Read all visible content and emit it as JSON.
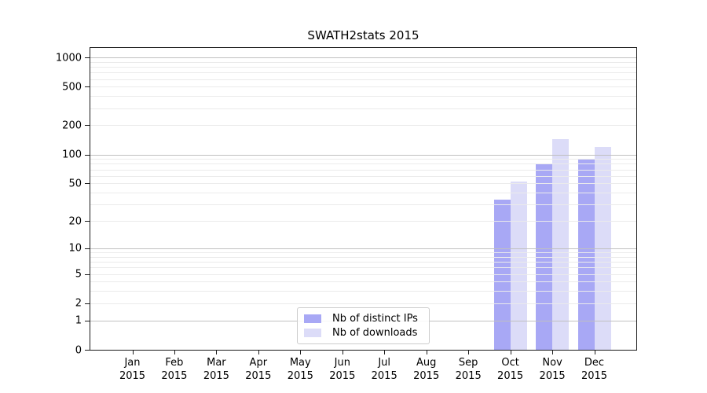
{
  "chart_data": {
    "type": "bar",
    "title": "SWATH2stats 2015",
    "y_scale": "log1p",
    "y_axis_max": 1250,
    "y_ticks": [
      0,
      1,
      2,
      5,
      10,
      20,
      50,
      100,
      200,
      500,
      1000
    ],
    "grid_major": [
      1,
      10,
      100,
      1000
    ],
    "grid_minor": [
      2,
      3,
      4,
      5,
      6,
      7,
      8,
      9,
      20,
      30,
      40,
      50,
      60,
      70,
      80,
      90,
      200,
      300,
      400,
      500,
      600,
      700,
      800,
      900
    ],
    "categories": [
      "Jan",
      "Feb",
      "Mar",
      "Apr",
      "May",
      "Jun",
      "Jul",
      "Aug",
      "Sep",
      "Oct",
      "Nov",
      "Dec"
    ],
    "x_year": "2015",
    "series": [
      {
        "name": "Nb of distinct IPs",
        "color": "#a8a8f5",
        "values": [
          0,
          0,
          0,
          0,
          0,
          0,
          0,
          0,
          0,
          34,
          81,
          88
        ]
      },
      {
        "name": "Nb of downloads",
        "color": "#dcdcf8",
        "values": [
          0,
          0,
          0,
          0,
          0,
          0,
          0,
          0,
          0,
          52,
          145,
          120
        ]
      }
    ],
    "legend_position": "lower center",
    "grid": true,
    "colors": {
      "grid_major": "#c0c0c0",
      "grid_minor": "#ebebeb",
      "spine": "#1a1a1a",
      "text": "#000000",
      "background": "#ffffff"
    }
  }
}
